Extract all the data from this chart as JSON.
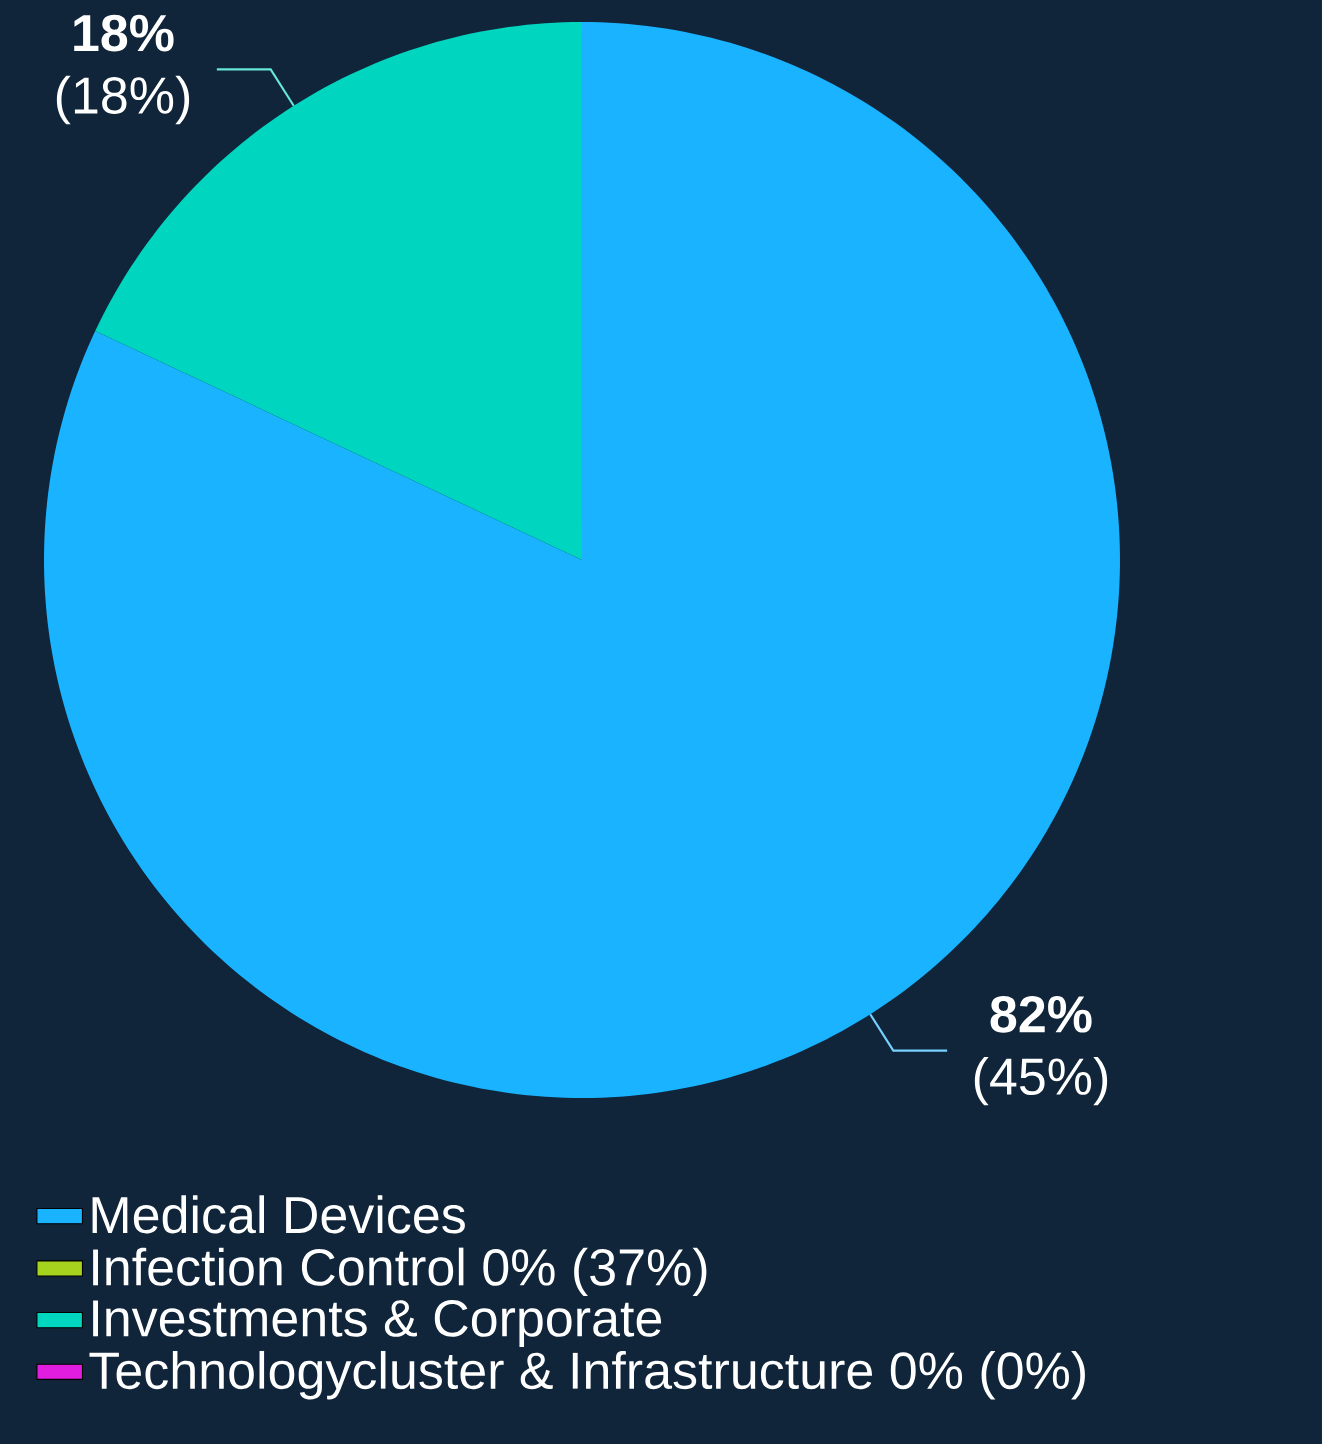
{
  "chart_data": {
    "type": "pie",
    "categories": [
      "Medical Devices",
      "Infection Control 0% (37%)",
      "Investments & Corporate",
      "Technologycluster & Infrastructure 0% (0%)"
    ],
    "values": [
      82,
      0,
      18,
      0
    ],
    "colors": [
      "#1ab3ff",
      "#a6d41e",
      "#00d5bf",
      "#e11ee0"
    ],
    "value_labels": [
      "**82%** (45%)",
      null,
      "**18%** (18%)",
      null
    ],
    "legend": "bottom left"
  }
}
